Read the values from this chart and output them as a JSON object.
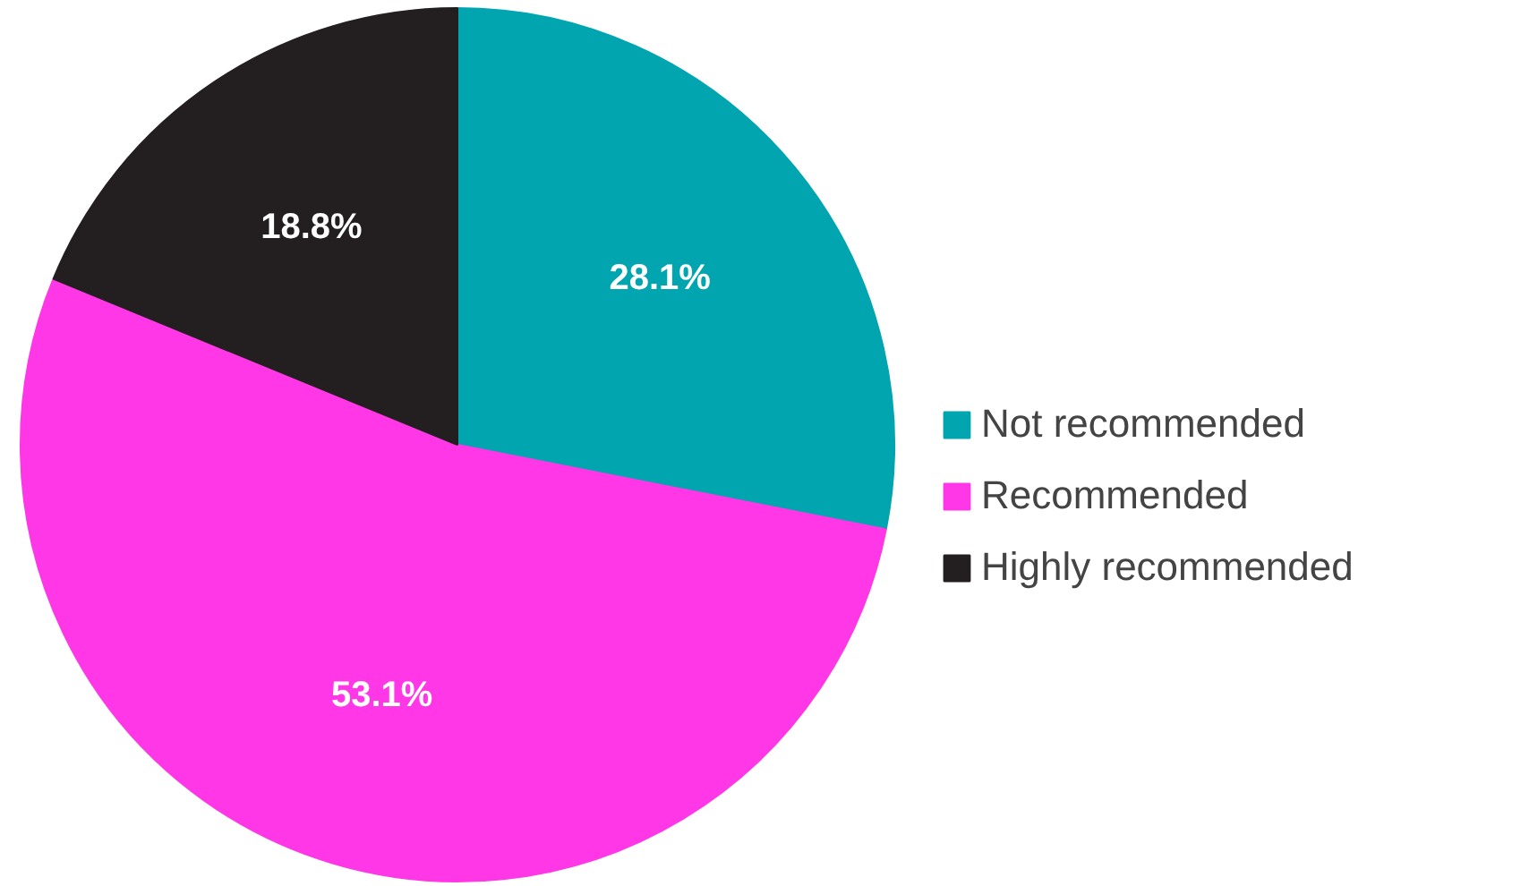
{
  "chart_data": {
    "type": "pie",
    "categories": [
      "Not recommended",
      "Recommended",
      "Highly recommended"
    ],
    "values": [
      28.1,
      53.1,
      18.8
    ],
    "colors": [
      "#00a5b0",
      "#ff37e6",
      "#231f20"
    ],
    "value_labels": [
      "28.1%",
      "53.1%",
      "18.8%"
    ],
    "legend": "right"
  }
}
